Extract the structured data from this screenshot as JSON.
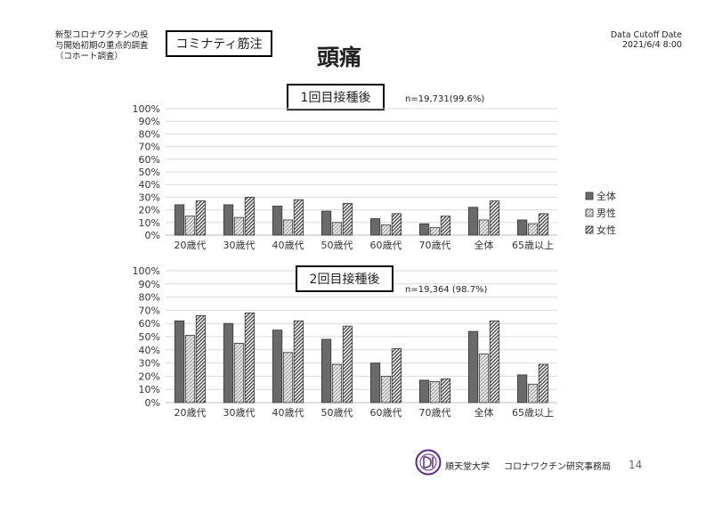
{
  "header": {
    "study_line1": "新型コロナワクチンの投",
    "study_line2": "与開始初期の重点的調査",
    "study_line3": "（コホート調査）",
    "vaccine_label": "コミナティ筋注",
    "title": "頭痛",
    "cutoff_label": "Data Cutoff Date",
    "cutoff_date": "2021/6/4 8:00"
  },
  "footer": {
    "university": "順天堂大学",
    "office": "コロナワクチン研究事務局",
    "page_number": "14"
  },
  "colors": {
    "all": "#6a6a6a",
    "male": "#e6e6e6",
    "female": "#4a4a4a"
  },
  "chart_data": [
    {
      "type": "bar",
      "title": "1回目接種後",
      "note": "n=19,731(99.6%)",
      "categories": [
        "20歳代",
        "30歳代",
        "40歳代",
        "50歳代",
        "60歳代",
        "70歳代",
        "全体",
        "65歳以上"
      ],
      "yticks": [
        "0%",
        "10%",
        "20%",
        "30%",
        "40%",
        "50%",
        "60%",
        "70%",
        "80%",
        "90%",
        "100%"
      ],
      "ylim": [
        0,
        100
      ],
      "legend_position": "right",
      "series": [
        {
          "name": "全体",
          "values": [
            24,
            24,
            23,
            19,
            13,
            9,
            22,
            12
          ]
        },
        {
          "name": "男性",
          "values": [
            15,
            14,
            12,
            10,
            8,
            6,
            12,
            9
          ]
        },
        {
          "name": "女性",
          "values": [
            27,
            30,
            28,
            25,
            17,
            15,
            27,
            17
          ]
        }
      ]
    },
    {
      "type": "bar",
      "title": "2回目接種後",
      "note": "n=19,364 (98.7%)",
      "categories": [
        "20歳代",
        "30歳代",
        "40歳代",
        "50歳代",
        "60歳代",
        "70歳代",
        "全体",
        "65歳以上"
      ],
      "yticks": [
        "0%",
        "10%",
        "20%",
        "30%",
        "40%",
        "50%",
        "60%",
        "70%",
        "80%",
        "90%",
        "100%"
      ],
      "ylim": [
        0,
        100
      ],
      "series": [
        {
          "name": "全体",
          "values": [
            62,
            60,
            55,
            48,
            30,
            17,
            54,
            21
          ]
        },
        {
          "name": "男性",
          "values": [
            51,
            45,
            38,
            29,
            20,
            16,
            37,
            14
          ]
        },
        {
          "name": "女性",
          "values": [
            66,
            68,
            62,
            58,
            41,
            18,
            62,
            29
          ]
        }
      ]
    }
  ]
}
